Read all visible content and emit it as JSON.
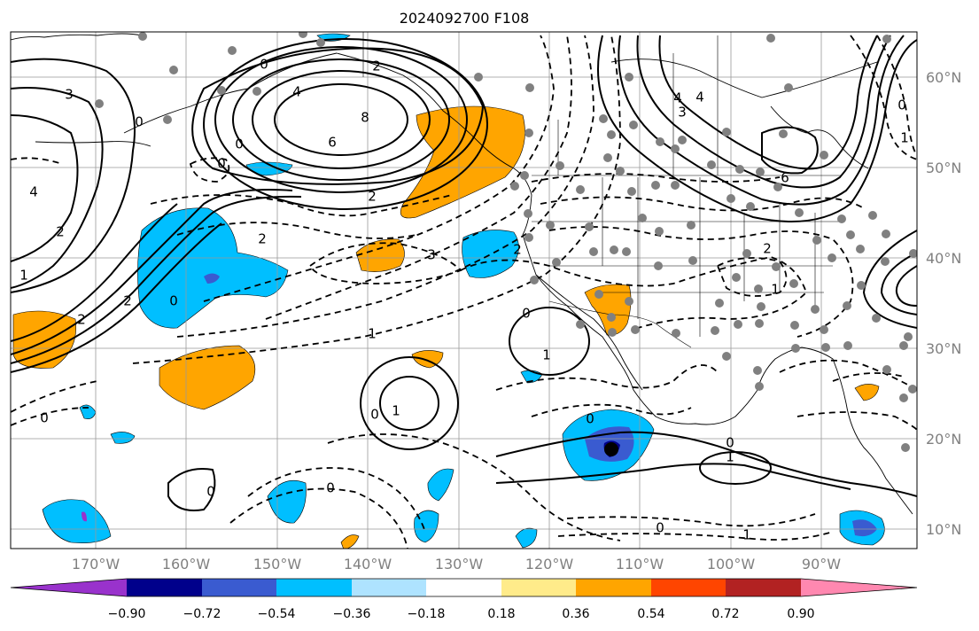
{
  "title": "2024092700 F108",
  "lat_labels": [
    "60°N",
    "50°N",
    "40°N",
    "30°N",
    "20°N",
    "10°N"
  ],
  "lon_labels": [
    "170°W",
    "160°W",
    "150°W",
    "140°W",
    "130°W",
    "120°W",
    "110°W",
    "100°W",
    "90°W"
  ],
  "colorbar": {
    "colors": [
      "#9932cc",
      "#00008b",
      "#3a5bd0",
      "#00bfff",
      "#aee3ff",
      "#ffffff",
      "#ffeb8a",
      "#ffa500",
      "#ff4500",
      "#b22222",
      "#ff88b0"
    ],
    "tick_labels": [
      "−0.90",
      "−0.72",
      "−0.54",
      "−0.36",
      "−0.18",
      "0.18",
      "0.36",
      "0.54",
      "0.72",
      "0.90"
    ]
  },
  "contour_labels": [
    "8",
    "6",
    "4",
    "0",
    "0",
    "2",
    "3",
    "4",
    "4",
    "3",
    "2",
    "0",
    "0",
    "2",
    "2",
    "0",
    "2",
    "3",
    "2",
    "1",
    "0",
    "1",
    "0",
    "1",
    "2",
    "2",
    "6",
    "4",
    "1",
    "0",
    "0",
    "1",
    "0",
    "1",
    "0",
    "0",
    "0",
    "1",
    "0",
    "1"
  ],
  "fill_colors": {
    "orange": "#ffa500",
    "blue": "#00bfff",
    "royal": "#3a5bd0",
    "navy": "#00008b",
    "purple": "#9932cc",
    "light_blue": "#aee3ff"
  }
}
